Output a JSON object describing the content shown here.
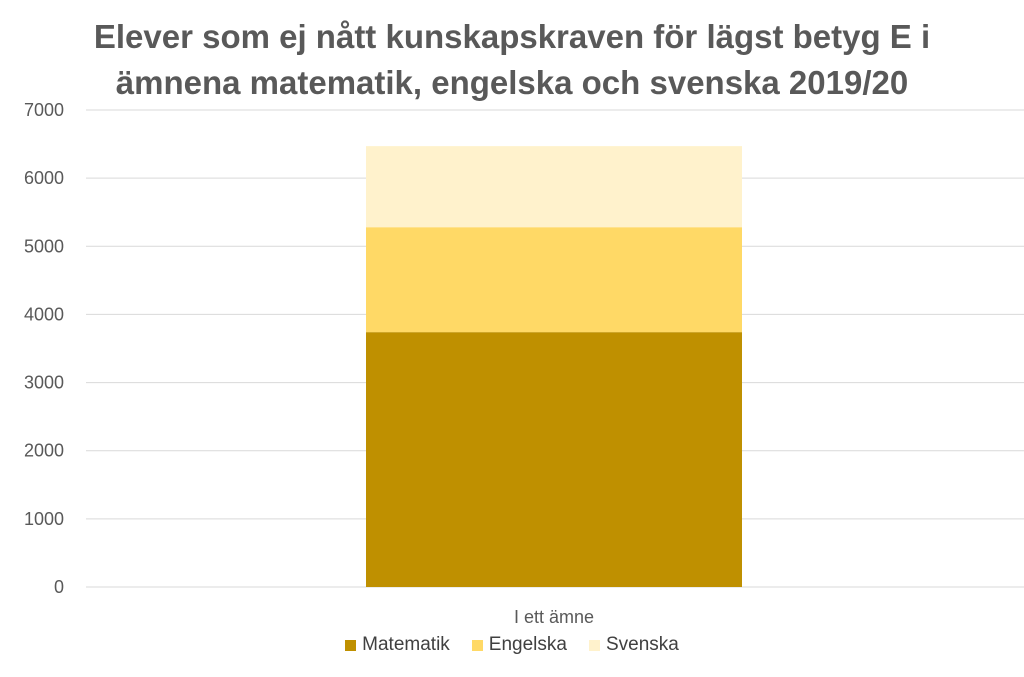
{
  "chart_data": {
    "type": "bar",
    "stacked": true,
    "title_lines": [
      "Elever som ej nått kunskapskraven för lägst betyg E i",
      "ämnena matematik, engelska och svenska 2019/20"
    ],
    "categories": [
      "I ett ämne"
    ],
    "series": [
      {
        "name": "Matematik",
        "values": [
          3740
        ],
        "color": "#bf9000"
      },
      {
        "name": "Engelska",
        "values": [
          1540
        ],
        "color": "#ffd966"
      },
      {
        "name": "Svenska",
        "values": [
          1190
        ],
        "color": "#fff2cc"
      }
    ],
    "ylim": [
      0,
      7000
    ],
    "yticks": [
      0,
      1000,
      2000,
      3000,
      4000,
      5000,
      6000,
      7000
    ],
    "grid": true,
    "legend_position": "bottom"
  }
}
